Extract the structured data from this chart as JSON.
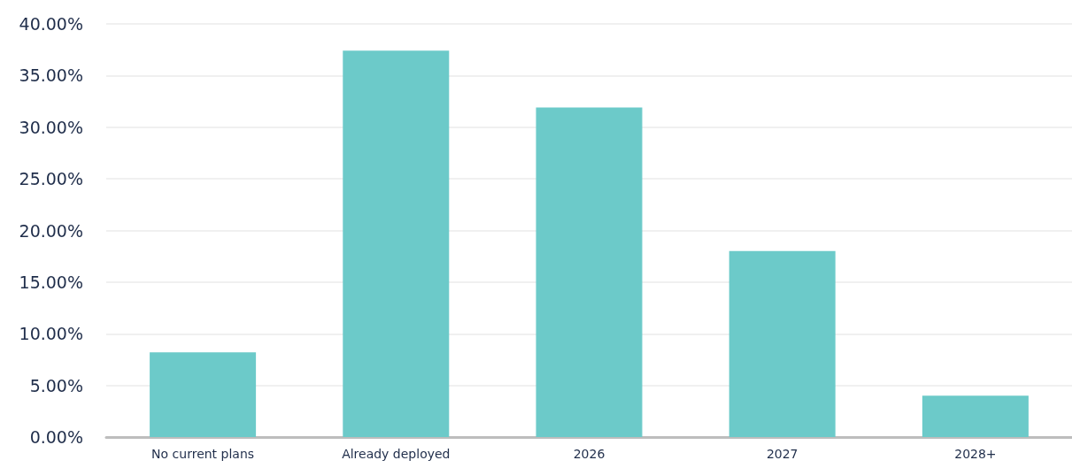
{
  "chart_data": {
    "type": "bar",
    "categories": [
      "No current plans",
      "Already deployed",
      "2026",
      "2027",
      "2028+"
    ],
    "values": [
      8.2,
      37.4,
      31.9,
      18.0,
      4.0
    ],
    "color": "#6ccac9",
    "ylim": [
      0,
      40
    ],
    "yticks": [
      {
        "value": 0,
        "label": "0.00%"
      },
      {
        "value": 5,
        "label": "5.00%"
      },
      {
        "value": 10,
        "label": "10.00%"
      },
      {
        "value": 15,
        "label": "15.00%"
      },
      {
        "value": 20,
        "label": "20.00%"
      },
      {
        "value": 25,
        "label": "25.00%"
      },
      {
        "value": 30,
        "label": "30.00%"
      },
      {
        "value": 35,
        "label": "35.00%"
      },
      {
        "value": 40,
        "label": "40.00%"
      }
    ],
    "grid": "y"
  }
}
